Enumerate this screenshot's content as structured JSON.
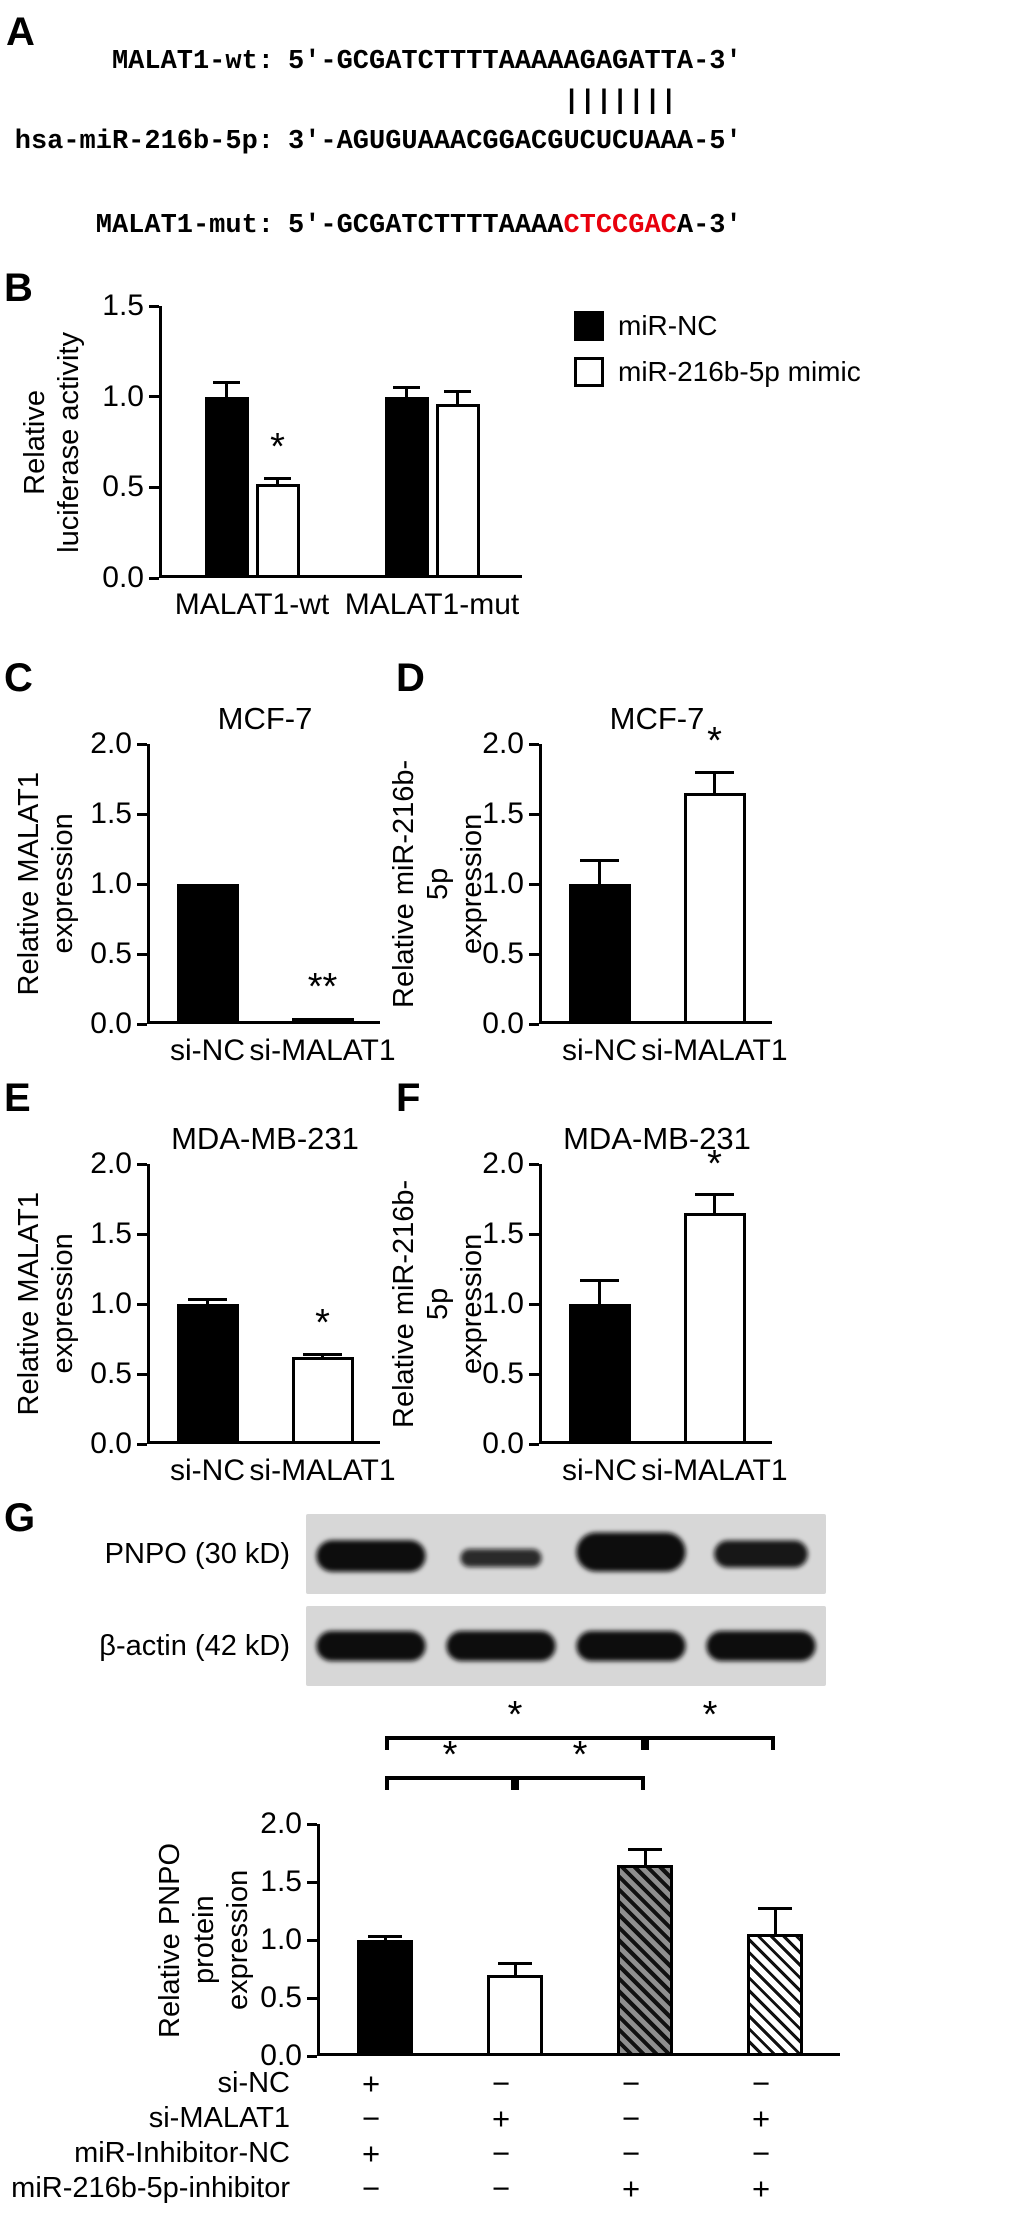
{
  "panels": {
    "a": {
      "letter": "A",
      "wt_label": "MALAT1-wt:",
      "wt_seq": "5'-GCGATCTTTTAAAAAGAGATTA-3'",
      "pair_line": "                 |||||||",
      "mir_label": "hsa-miR-216b-5p:",
      "mir_seq": "3'-AGUGUAAACGGACGUCUCUAAA-5'",
      "mut_label": "MALAT1-mut:",
      "mut_seq_pre": "5'-GCGATCTTTTAAAA",
      "mut_seq_mut": "CTCCGAC",
      "mut_seq_post": "A-3'",
      "mut_color": "#e8000c"
    },
    "b": {
      "letter": "B"
    },
    "c": {
      "letter": "C"
    },
    "d": {
      "letter": "D"
    },
    "e": {
      "letter": "E"
    },
    "f": {
      "letter": "F"
    },
    "g": {
      "letter": "G",
      "blots": [
        {
          "label": "PNPO (30 kD)",
          "lanes": [
            {
              "w": 1.05,
              "h": 1.05,
              "o": 1,
              "dy": 2
            },
            {
              "w": 0.78,
              "h": 0.6,
              "o": 0.85,
              "dy": 4
            },
            {
              "w": 1.05,
              "h": 1.3,
              "o": 1,
              "dy": -2
            },
            {
              "w": 0.9,
              "h": 0.9,
              "o": 0.95,
              "dy": 0
            }
          ]
        },
        {
          "label": "β-actin (42 kD)",
          "lanes": [
            {
              "w": 1.05,
              "h": 1,
              "o": 1,
              "dy": 0
            },
            {
              "w": 1.05,
              "h": 1,
              "o": 1,
              "dy": 0
            },
            {
              "w": 1.05,
              "h": 1,
              "o": 1,
              "dy": 0
            },
            {
              "w": 1.05,
              "h": 1,
              "o": 1,
              "dy": 0
            }
          ]
        }
      ],
      "conditions": {
        "rows": [
          {
            "label": "si-NC",
            "values": [
              "+",
              "−",
              "−",
              "−"
            ]
          },
          {
            "label": "si-MALAT1",
            "values": [
              "−",
              "+",
              "−",
              "+"
            ]
          },
          {
            "label": "miR-Inhibitor-NC",
            "values": [
              "+",
              "−",
              "−",
              "−"
            ]
          },
          {
            "label": "miR-216b-5p-inhibitor",
            "values": [
              "−",
              "−",
              "+",
              "+"
            ]
          }
        ]
      }
    }
  },
  "chart_data": [
    {
      "panel": "B",
      "type": "bar",
      "title": "",
      "ylabel": [
        "Relative",
        "luciferase activity"
      ],
      "ylim": [
        0,
        1.5
      ],
      "yticks": [
        0,
        0.5,
        1.0,
        1.5
      ],
      "categories": [
        "MALAT1-wt",
        "MALAT1-mut"
      ],
      "series": [
        {
          "name": "miR-NC",
          "fill": "black",
          "values": [
            1.0,
            1.0
          ],
          "errors": [
            0.08,
            0.05
          ]
        },
        {
          "name": "miR-216b-5p mimic",
          "fill": "white",
          "values": [
            0.52,
            0.96
          ],
          "errors": [
            0.03,
            0.07
          ]
        }
      ],
      "significance": [
        {
          "label": "*",
          "category": 0,
          "series": 1
        }
      ],
      "legend": true
    },
    {
      "panel": "C",
      "type": "bar",
      "title": "MCF-7",
      "ylabel": [
        "Relative MALAT1",
        "expression"
      ],
      "ylim": [
        0,
        2.0
      ],
      "yticks": [
        0,
        0.5,
        1.0,
        1.5,
        2.0
      ],
      "categories": [
        "si-NC",
        "si-MALAT1"
      ],
      "series": [
        {
          "fill": [
            "black",
            "black"
          ],
          "values": [
            1.0,
            0.04
          ],
          "errors": [
            0,
            0
          ]
        }
      ],
      "significance": [
        {
          "label": "**",
          "category": 1,
          "series": 0
        }
      ]
    },
    {
      "panel": "D",
      "type": "bar",
      "title": "MCF-7",
      "ylabel": [
        "Relative miR-216b-5p",
        "expression"
      ],
      "ylim": [
        0,
        2.0
      ],
      "yticks": [
        0,
        0.5,
        1.0,
        1.5,
        2.0
      ],
      "categories": [
        "si-NC",
        "si-MALAT1"
      ],
      "series": [
        {
          "fill": [
            "black",
            "white"
          ],
          "values": [
            1.0,
            1.65
          ],
          "errors": [
            0.17,
            0.15
          ]
        }
      ],
      "significance": [
        {
          "label": "*",
          "category": 1,
          "series": 0
        }
      ]
    },
    {
      "panel": "E",
      "type": "bar",
      "title": "MDA-MB-231",
      "ylabel": [
        "Relative MALAT1",
        "expression"
      ],
      "ylim": [
        0,
        2.0
      ],
      "yticks": [
        0,
        0.5,
        1.0,
        1.5,
        2.0
      ],
      "categories": [
        "si-NC",
        "si-MALAT1"
      ],
      "series": [
        {
          "fill": [
            "black",
            "white"
          ],
          "values": [
            1.0,
            0.62
          ],
          "errors": [
            0.03,
            0.02
          ]
        }
      ],
      "significance": [
        {
          "label": "*",
          "category": 1,
          "series": 0
        }
      ]
    },
    {
      "panel": "F",
      "type": "bar",
      "title": "MDA-MB-231",
      "ylabel": [
        "Relative miR-216b-5p",
        "expression"
      ],
      "ylim": [
        0,
        2.0
      ],
      "yticks": [
        0,
        0.5,
        1.0,
        1.5,
        2.0
      ],
      "categories": [
        "si-NC",
        "si-MALAT1"
      ],
      "series": [
        {
          "fill": [
            "black",
            "white"
          ],
          "values": [
            1.0,
            1.65
          ],
          "errors": [
            0.17,
            0.13
          ]
        }
      ],
      "significance": [
        {
          "label": "*",
          "category": 1,
          "series": 0
        }
      ]
    },
    {
      "panel": "G",
      "type": "bar",
      "title": "",
      "ylabel": [
        "Relative PNPO",
        "protein expression"
      ],
      "ylim": [
        0,
        2.0
      ],
      "yticks": [
        0,
        0.5,
        1.0,
        1.5,
        2.0
      ],
      "categories": [
        "",
        "",
        "",
        ""
      ],
      "series": [
        {
          "fill": [
            "black",
            "white",
            "hatch-dark",
            "hatch-light"
          ],
          "values": [
            1.0,
            0.7,
            1.65,
            1.05
          ],
          "errors": [
            0.03,
            0.1,
            0.13,
            0.22
          ]
        }
      ],
      "brackets": [
        {
          "from": 0,
          "to": 1,
          "level": 0,
          "label": "*"
        },
        {
          "from": 1,
          "to": 2,
          "level": 0,
          "label": "*"
        },
        {
          "from": 0,
          "to": 2,
          "level": 1,
          "label": "*"
        },
        {
          "from": 2,
          "to": 3,
          "level": 1,
          "label": "*"
        }
      ]
    }
  ]
}
